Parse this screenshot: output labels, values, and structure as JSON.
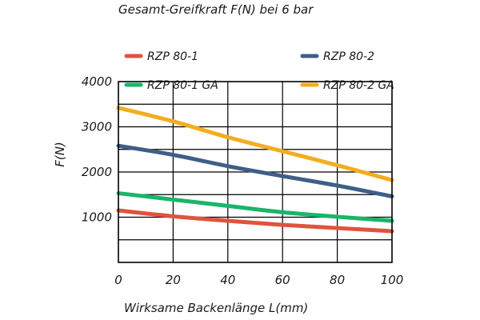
{
  "chart_data": {
    "type": "line",
    "title": "Gesamt-Greifkraft F(N) bei 6 bar",
    "xlabel": "Wirksame Backenlänge L(mm)",
    "ylabel": "F(N)",
    "xlim": [
      0,
      100
    ],
    "ylim": [
      0,
      4000
    ],
    "x_ticks": [
      0,
      20,
      40,
      60,
      80,
      100
    ],
    "y_ticks": [
      1000,
      2000,
      3000,
      4000
    ],
    "x_tick_labels": [
      "0",
      "20",
      "40",
      "60",
      "80",
      "100"
    ],
    "y_tick_labels": [
      "1000",
      "2000",
      "3000",
      "4000"
    ],
    "y_grid_step": 500,
    "grid": true,
    "legend_position": "top",
    "x": [
      0,
      20,
      40,
      60,
      80,
      100
    ],
    "series": [
      {
        "name": "RZP 80-1",
        "color": "#e0533d",
        "values": [
          1150,
          1020,
          920,
          830,
          760,
          690
        ]
      },
      {
        "name": "RZP 80-2",
        "color": "#3e5f86",
        "values": [
          2580,
          2380,
          2130,
          1910,
          1700,
          1460
        ]
      },
      {
        "name": "RZP 80-1 GA",
        "color": "#19b56a",
        "values": [
          1530,
          1390,
          1250,
          1110,
          1010,
          920
        ]
      },
      {
        "name": "RZP 80-2 GA",
        "color": "#f3ad1f",
        "values": [
          3420,
          3120,
          2770,
          2460,
          2150,
          1820
        ]
      }
    ]
  }
}
